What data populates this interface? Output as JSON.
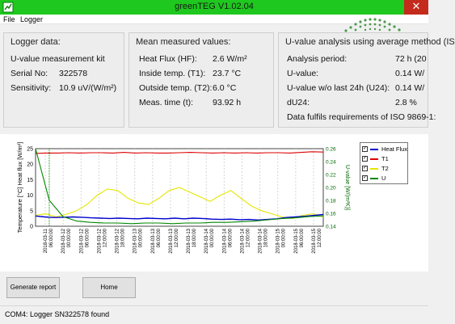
{
  "window": {
    "title": "greenTEG V1.02.04"
  },
  "menu": {
    "file": "File",
    "logger": "Logger"
  },
  "logger_panel": {
    "title": "Logger data:",
    "kit": "U-value measurement kit",
    "serial_label": "Serial No:",
    "serial_value": "322578",
    "sensitivity_label": "Sensitivity:",
    "sensitivity_value": "10.9 uV/(W/m²)"
  },
  "mean_panel": {
    "title": "Mean measured values:",
    "rows": [
      {
        "label": "Heat Flux (HF):",
        "value": "2.6 W/m²"
      },
      {
        "label": "Inside temp. (T1):",
        "value": "23.7 °C"
      },
      {
        "label": "Outside temp. (T2):",
        "value": "6.0 °C"
      },
      {
        "label": "Meas. time (t):",
        "value": "93.92 h"
      }
    ]
  },
  "uvalue_panel": {
    "title": "U-value analysis using average method (IS",
    "rows": [
      {
        "label": "Analysis period:",
        "value": "72 h (20"
      },
      {
        "label": "U-value:",
        "value": "0.14 W/"
      },
      {
        "label": "U-value w/o last 24h (U24):",
        "value": "0.14 W/"
      },
      {
        "label": "dU24:",
        "value": "2.8 %"
      },
      {
        "label": "Data fulfils requirements of ISO 9869-1:",
        "value": ""
      }
    ]
  },
  "chart": {
    "left_axis_label": "Temperature [°C] Heat flux [W/m²]",
    "right_axis_label": "U-value [W/(m²K)]",
    "left_ticks": [
      "0",
      "5",
      "10",
      "15",
      "20",
      "25"
    ],
    "right_ticks": [
      "0.14",
      "0.16",
      "0.18",
      "0.20",
      "0.22",
      "0.24",
      "0.26"
    ],
    "x_ticks": [
      "2018-03-11 06:00:00",
      "2018-03-12 00:00:00",
      "2018-03-12 06:00:00",
      "2018-03-12 12:00:00",
      "2018-03-12 18:00:00",
      "2018-03-13 00:00:00",
      "2018-03-13 06:00:00",
      "2018-03-13 12:00:00",
      "2018-03-13 18:00:00",
      "2018-03-14 00:00:00",
      "2018-03-14 06:00:00",
      "2018-03-14 12:00:00",
      "2018-03-14 18:00:00",
      "2018-03-15 00:00:00",
      "2018-03-15 06:00:00",
      "2018-03-15 12:00:00"
    ],
    "legend": [
      {
        "name": "Heat Flux",
        "color": "#0000cc",
        "checked": true
      },
      {
        "name": "T1",
        "color": "#dd0000",
        "checked": true
      },
      {
        "name": "T2",
        "color": "#e6e600",
        "checked": true
      },
      {
        "name": "U",
        "color": "#008800",
        "checked": true
      }
    ]
  },
  "chart_data": {
    "type": "line",
    "y_left_range": [
      0,
      25
    ],
    "y_right_range": [
      0.14,
      0.26
    ],
    "series": [
      {
        "name": "T1",
        "axis": "left",
        "values": [
          23.5,
          23.6,
          23.6,
          23.7,
          23.6,
          23.7,
          23.7,
          23.6,
          23.8,
          23.6,
          23.7,
          23.6,
          23.6,
          23.7,
          23.8,
          23.7,
          23.6,
          23.7,
          23.6,
          23.7,
          23.6,
          23.7,
          23.7,
          23.6,
          23.8,
          24.0,
          23.9
        ]
      },
      {
        "name": "T2",
        "axis": "left",
        "values": [
          3.5,
          4.0,
          3.0,
          3.8,
          5.0,
          7.0,
          10.0,
          12.0,
          11.5,
          9.0,
          7.5,
          7.0,
          9.0,
          11.5,
          12.5,
          11.0,
          9.5,
          8.0,
          10.0,
          11.5,
          9.0,
          6.5,
          5.0,
          4.0,
          3.0,
          2.5,
          3.5,
          4.0,
          3.0
        ]
      },
      {
        "name": "Heat Flux",
        "axis": "left",
        "values": [
          3.3,
          3.0,
          2.8,
          2.9,
          3.0,
          2.9,
          2.7,
          2.6,
          2.5,
          2.6,
          2.5,
          2.4,
          2.6,
          2.5,
          2.4,
          2.6,
          2.4,
          2.6,
          2.5,
          2.3,
          2.2,
          2.3,
          2.1,
          2.2,
          2.0,
          2.2,
          2.4,
          2.8,
          3.0,
          3.2,
          3.5,
          3.8
        ]
      },
      {
        "name": "U",
        "axis": "right",
        "values": [
          0.26,
          0.18,
          0.155,
          0.148,
          0.146,
          0.145,
          0.145,
          0.144,
          0.145,
          0.145,
          0.144,
          0.145,
          0.145,
          0.146,
          0.146,
          0.147,
          0.148,
          0.15,
          0.152,
          0.153,
          0.155,
          0.156
        ]
      }
    ]
  },
  "buttons": {
    "report": "Generate report",
    "home": "Home"
  },
  "status": "COM4: Logger SN322578 found"
}
